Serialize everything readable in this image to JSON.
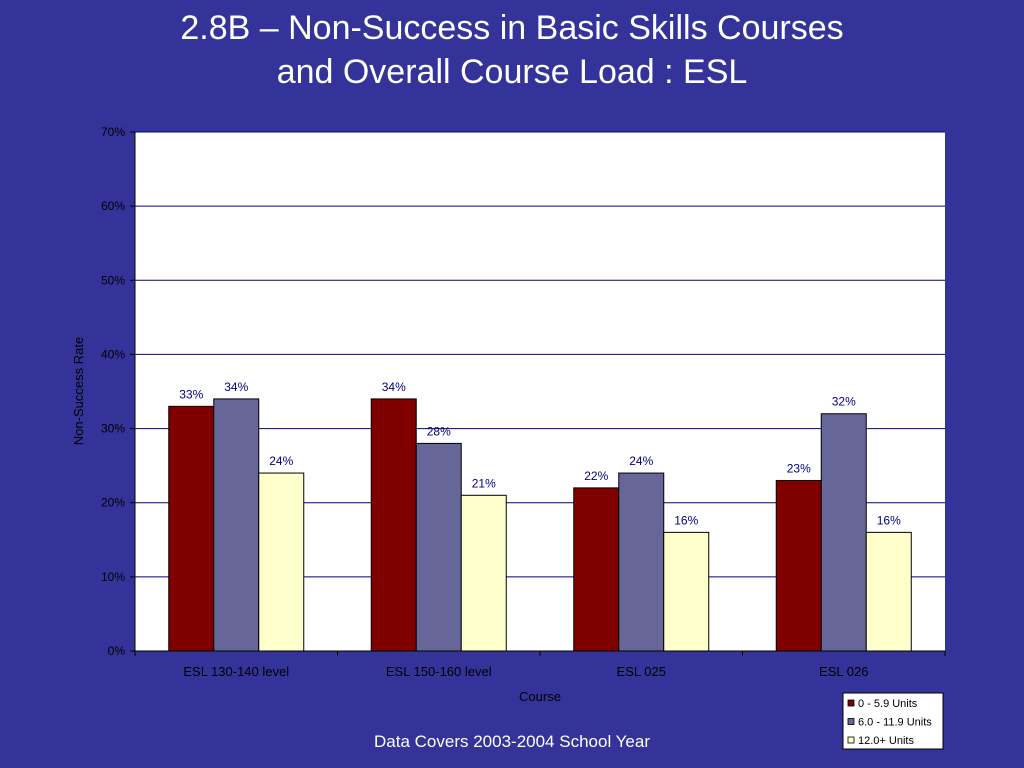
{
  "slide": {
    "title_line1": "2.8B – Non-Success in Basic Skills Courses",
    "title_line2": "and Overall Course Load : ESL",
    "footer": "Data Covers 2003-2004 School Year"
  },
  "colors": {
    "background": "#333399",
    "plot_area": "#ffffff",
    "gridline": "#000080"
  },
  "chart_data": {
    "type": "bar",
    "categories": [
      "ESL 130-140 level",
      "ESL 150-160 level",
      "ESL 025",
      "ESL 026"
    ],
    "series": [
      {
        "name": "0 - 5.9 Units",
        "color": "#800000",
        "values": [
          33,
          34,
          22,
          23
        ],
        "labels": [
          "33%",
          "34%",
          "22%",
          "23%"
        ]
      },
      {
        "name": "6.0 - 11.9 Units",
        "color": "#666699",
        "values": [
          34,
          28,
          24,
          32
        ],
        "labels": [
          "34%",
          "28%",
          "24%",
          "32%"
        ]
      },
      {
        "name": "12.0+ Units",
        "color": "#ffffcc",
        "values": [
          24,
          21,
          16,
          16
        ],
        "labels": [
          "24%",
          "21%",
          "16%",
          "16%"
        ]
      }
    ],
    "xlabel": "Course",
    "ylabel": "Non-Success Rate",
    "ylim": [
      0,
      70
    ],
    "yticks": [
      0,
      10,
      20,
      30,
      40,
      50,
      60,
      70
    ],
    "ytick_labels": [
      "0%",
      "10%",
      "20%",
      "30%",
      "40%",
      "50%",
      "60%",
      "70%"
    ],
    "grid": true,
    "legend_position": "bottom-right"
  }
}
